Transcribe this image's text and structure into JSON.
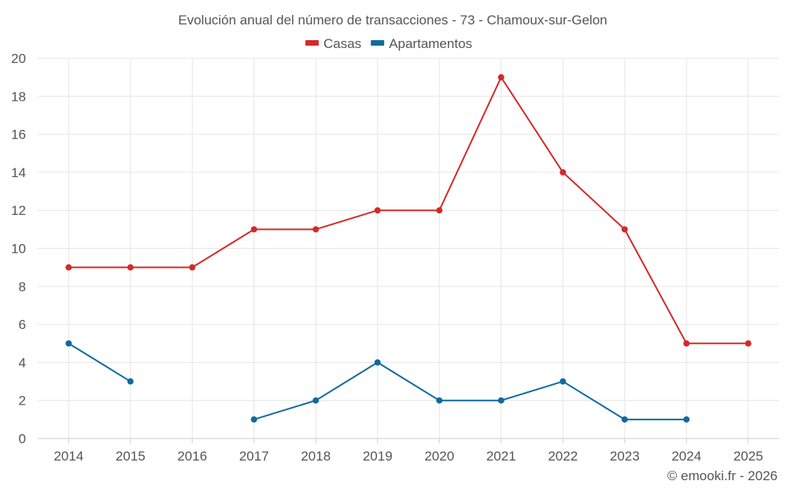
{
  "chart_data": {
    "type": "line",
    "title": "Evolución anual del número de transacciones - 73 - Chamoux-sur-Gelon",
    "categories": [
      "2014",
      "2015",
      "2016",
      "2017",
      "2018",
      "2019",
      "2020",
      "2021",
      "2022",
      "2023",
      "2024",
      "2025"
    ],
    "series": [
      {
        "name": "Casas",
        "color": "#d32a2a",
        "values": [
          9,
          9,
          9,
          11,
          11,
          12,
          12,
          19,
          14,
          11,
          5,
          5
        ]
      },
      {
        "name": "Apartamentos",
        "color": "#0f6a9e",
        "values": [
          5,
          3,
          null,
          1,
          2,
          4,
          2,
          2,
          3,
          1,
          1,
          null
        ]
      }
    ],
    "ylim": [
      0,
      20
    ],
    "yticks": [
      0,
      2,
      4,
      6,
      8,
      10,
      12,
      14,
      16,
      18,
      20
    ],
    "xlabel": "",
    "ylabel": "",
    "grid": true,
    "legend": "top-center"
  },
  "credit": "© emooki.fr - 2026"
}
